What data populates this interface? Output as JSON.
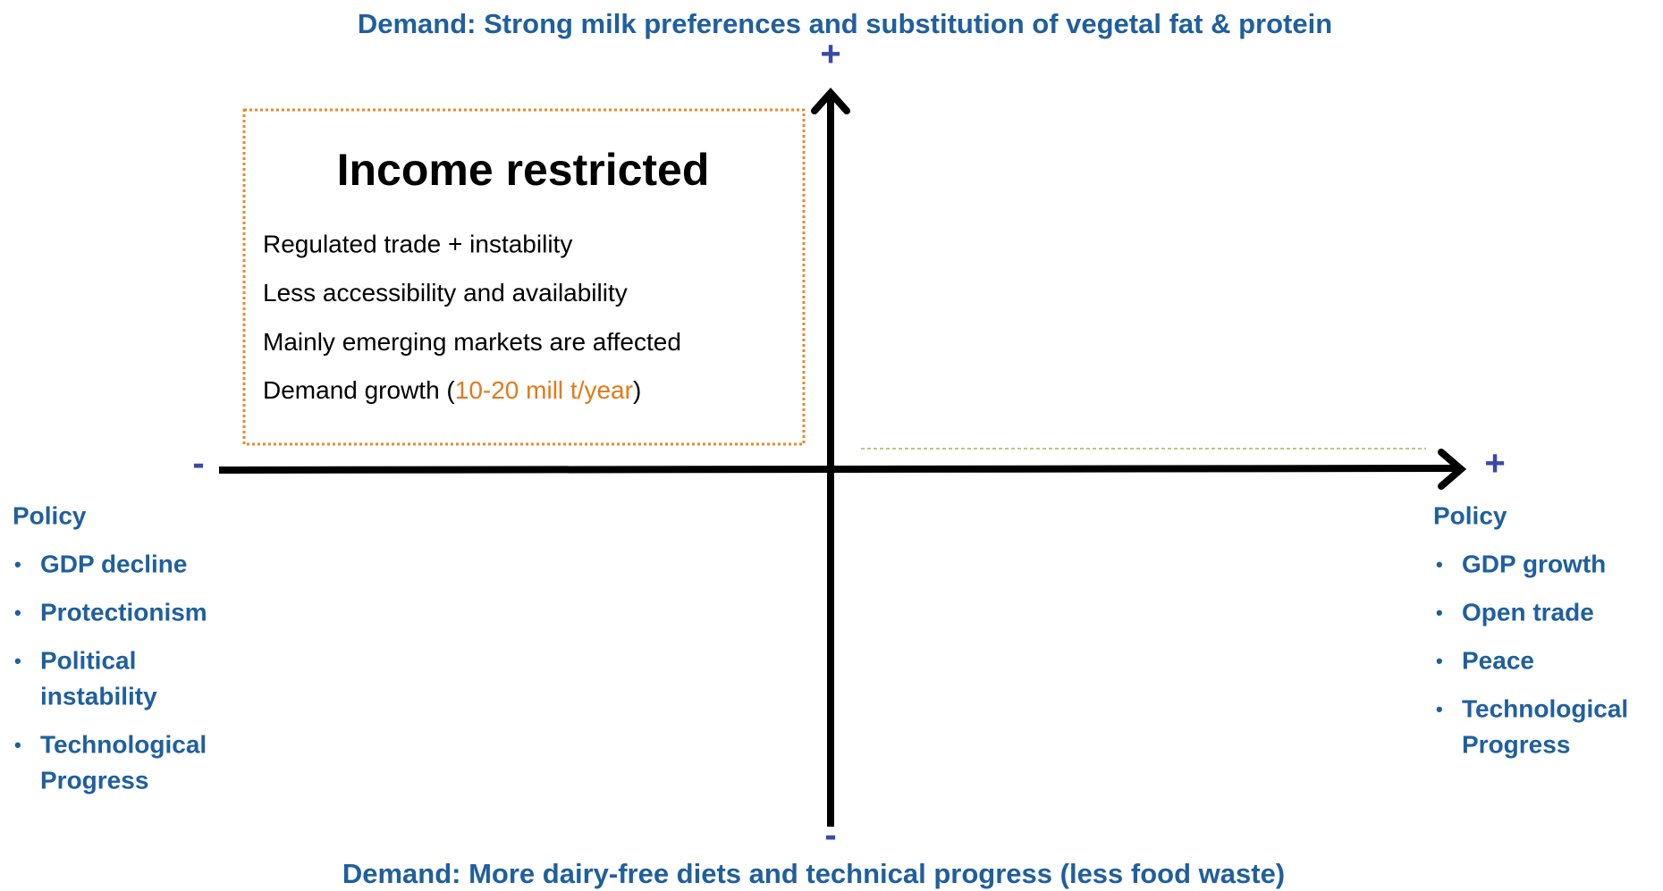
{
  "top_label": "Demand: Strong milk preferences and substitution of vegetal fat & protein",
  "bottom_label": "Demand: More dairy-free diets and technical progress (less food waste)",
  "axis_signs": {
    "y_plus": "+",
    "y_minus": "-",
    "x_minus": "-",
    "x_plus": "+"
  },
  "quadrant": {
    "title": "Income restricted",
    "lines": [
      "Regulated trade + instability",
      "Less accessibility and availability",
      "Mainly emerging markets are affected"
    ],
    "last_line": {
      "before": "Demand growth (",
      "highlight": "10-20 mill t/year",
      "after": ")"
    }
  },
  "left": {
    "heading": "Policy",
    "bullet": "•",
    "items": [
      [
        "GDP decline"
      ],
      [
        "Protectionism"
      ],
      [
        "Political",
        "instability"
      ],
      [
        "Technological",
        "Progress"
      ]
    ]
  },
  "right": {
    "heading": "Policy",
    "bullet": "•",
    "items": [
      [
        "GDP growth"
      ],
      [
        "Open trade"
      ],
      [
        "Peace"
      ],
      [
        "Technological",
        "Progress"
      ]
    ]
  }
}
